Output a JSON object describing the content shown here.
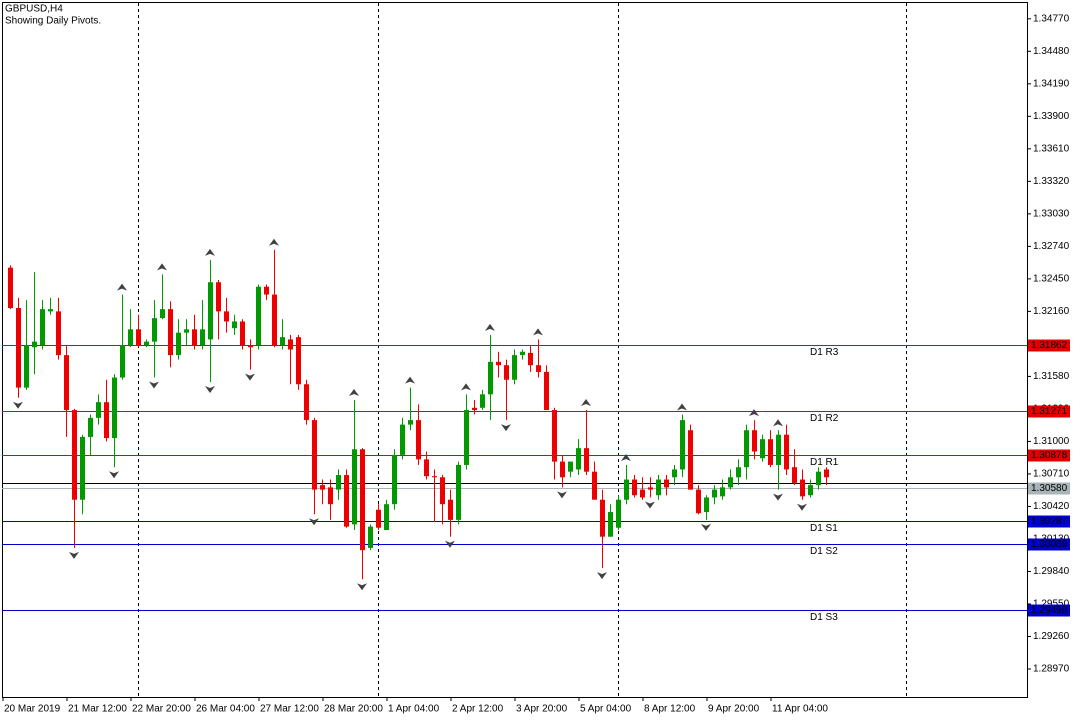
{
  "chart_data": {
    "type": "candlestick",
    "title": "GBPUSD,H4",
    "subtitle": "Showing Daily Pivots.",
    "categories": [
      "20 Mar 2019",
      null,
      null,
      null,
      null,
      null,
      null,
      null,
      "21 Mar 12:00",
      null,
      null,
      null,
      null,
      null,
      null,
      null,
      "22 Mar 20:00",
      null,
      null,
      null,
      null,
      null,
      null,
      null,
      "26 Mar 04:00",
      null,
      null,
      null,
      null,
      null,
      null,
      null,
      "27 Mar 12:00",
      null,
      null,
      null,
      null,
      null,
      null,
      null,
      "28 Mar 20:00",
      null,
      null,
      null,
      null,
      null,
      null,
      null,
      "1 Apr 04:00",
      null,
      null,
      null,
      null,
      null,
      null,
      null,
      "2 Apr 12:00",
      null,
      null,
      null,
      null,
      null,
      null,
      null,
      "3 Apr 20:00",
      null,
      null,
      null,
      null,
      null,
      null,
      null,
      "5 Apr 04:00",
      null,
      null,
      null,
      null,
      null,
      null,
      null,
      "8 Apr 12:00",
      null,
      null,
      null,
      null,
      null,
      null,
      null,
      "9 Apr 20:00",
      null,
      null,
      null,
      null,
      null,
      null,
      null,
      "11 Apr 04:00",
      null,
      null,
      null,
      null,
      null,
      null
    ],
    "open": [
      1.3255,
      1.3219,
      1.3148,
      1.3184,
      1.3186,
      1.3216,
      1.3216,
      1.3177,
      1.3128,
      1.3048,
      1.3104,
      1.3121,
      1.3135,
      1.3103,
      1.3157,
      1.3186,
      1.32,
      1.3186,
      1.3189,
      1.321,
      1.3218,
      1.3177,
      1.3197,
      1.32,
      1.3186,
      1.3191,
      1.3242,
      1.3216,
      1.3201,
      1.3207,
      1.3186,
      1.3186,
      1.3238,
      1.3231,
      1.3186,
      1.3191,
      1.3193,
      1.3151,
      1.3119,
      1.3061,
      1.3059,
      1.3057,
      1.307,
      1.3026,
      1.3093,
      1.3005,
      1.3039,
      1.3021,
      1.3044,
      1.3088,
      1.3115,
      1.3119,
      1.3084,
      1.3069,
      1.3068,
      1.3048,
      1.303,
      1.3079,
      1.313,
      1.313,
      1.3142,
      1.3171,
      1.3168,
      1.3155,
      1.3177,
      1.3179,
      1.3168,
      1.3162,
      1.3128,
      1.3082,
      1.3073,
      1.3075,
      1.3094,
      1.3073,
      1.3048,
      1.3015,
      1.3023,
      1.3048,
      1.3066,
      1.3057,
      1.3059,
      1.3052,
      1.3066,
      1.3068,
      1.3075,
      1.311,
      1.3057,
      1.3037,
      1.305,
      1.3051,
      1.3059,
      1.3068,
      1.3077,
      1.311,
      1.3085,
      1.3102,
      1.3079,
      1.3106,
      1.3077,
      1.3066,
      1.3052,
      1.3061,
      1.3075
    ],
    "high": [
      1.3257,
      1.3228,
      1.3226,
      1.3251,
      1.3226,
      1.3228,
      1.3228,
      1.3186,
      1.3129,
      1.3106,
      1.3124,
      1.3142,
      1.3155,
      1.316,
      1.3231,
      1.3218,
      1.3213,
      1.3191,
      1.3226,
      1.3249,
      1.3225,
      1.3209,
      1.3209,
      1.3213,
      1.3226,
      1.3262,
      1.3244,
      1.3228,
      1.3213,
      1.3209,
      1.3191,
      1.324,
      1.324,
      1.3271,
      1.3209,
      1.3195,
      1.3195,
      1.3155,
      1.3121,
      1.3066,
      1.3066,
      1.3075,
      1.3075,
      1.3137,
      1.3094,
      1.3026,
      1.3044,
      1.3048,
      1.3093,
      1.3121,
      1.3148,
      1.3133,
      1.3091,
      1.3075,
      1.307,
      1.3057,
      1.3082,
      1.3142,
      1.3137,
      1.3146,
      1.3195,
      1.318,
      1.3173,
      1.3182,
      1.3182,
      1.3186,
      1.3191,
      1.3168,
      1.313,
      1.3088,
      1.3082,
      1.3102,
      1.3128,
      1.3082,
      1.3057,
      1.3044,
      1.3052,
      1.3079,
      1.307,
      1.3068,
      1.3068,
      1.307,
      1.307,
      1.3079,
      1.3124,
      1.3115,
      1.3061,
      1.3052,
      1.3061,
      1.3066,
      1.3075,
      1.3084,
      1.3115,
      1.3119,
      1.3106,
      1.311,
      1.311,
      1.3115,
      1.3093,
      1.3075,
      1.3066,
      1.3077,
      1.3077
    ],
    "low": [
      1.3218,
      1.3139,
      1.3146,
      1.316,
      1.3182,
      1.3213,
      1.3173,
      1.3104,
      1.3005,
      1.3035,
      1.3088,
      1.3115,
      1.31,
      1.3077,
      1.3155,
      1.3184,
      1.3184,
      1.3184,
      1.3157,
      1.3209,
      1.3166,
      1.3173,
      1.3186,
      1.3182,
      1.3182,
      1.3153,
      1.3191,
      1.3197,
      1.3195,
      1.3182,
      1.3164,
      1.3182,
      1.3226,
      1.3184,
      1.3182,
      1.3151,
      1.3146,
      1.3115,
      1.3035,
      1.3044,
      1.303,
      1.3048,
      1.3023,
      1.3021,
      1.2977,
      1.3003,
      1.3021,
      1.3021,
      1.3039,
      1.3084,
      1.311,
      1.3079,
      1.3066,
      1.3028,
      1.3026,
      1.3015,
      1.3026,
      1.3075,
      1.3124,
      1.3128,
      1.3119,
      1.3157,
      1.3119,
      1.3151,
      1.3173,
      1.3162,
      1.3157,
      1.3128,
      1.3066,
      1.3059,
      1.3068,
      1.307,
      1.307,
      1.3048,
      1.2987,
      1.3015,
      1.3021,
      1.3044,
      1.305,
      1.3048,
      1.305,
      1.3048,
      1.3052,
      1.3061,
      1.3068,
      1.3057,
      1.3035,
      1.303,
      1.3044,
      1.3048,
      1.3057,
      1.3061,
      1.3066,
      1.3084,
      1.3082,
      1.3077,
      1.3057,
      1.307,
      1.3061,
      1.3048,
      1.305,
      1.3057,
      1.3061
    ],
    "close": [
      1.3219,
      1.3148,
      1.3186,
      1.3189,
      1.3218,
      1.3218,
      1.3177,
      1.3128,
      1.3048,
      1.3104,
      1.3121,
      1.3135,
      1.3103,
      1.3157,
      1.3186,
      1.32,
      1.3186,
      1.3189,
      1.321,
      1.3218,
      1.3177,
      1.3197,
      1.32,
      1.3186,
      1.32,
      1.3242,
      1.3216,
      1.3207,
      1.3207,
      1.3186,
      1.3184,
      1.3238,
      1.3231,
      1.3186,
      1.3193,
      1.3182,
      1.3151,
      1.3119,
      1.3057,
      1.3057,
      1.3044,
      1.307,
      1.3024,
      1.3093,
      1.3003,
      1.3024,
      1.3023,
      1.3044,
      1.3088,
      1.3115,
      1.3119,
      1.3084,
      1.3069,
      1.3068,
      1.3044,
      1.303,
      1.3079,
      1.3128,
      1.3128,
      1.3142,
      1.3171,
      1.3168,
      1.3155,
      1.3177,
      1.318,
      1.3168,
      1.3162,
      1.3128,
      1.3082,
      1.3068,
      1.3082,
      1.3094,
      1.3073,
      1.3048,
      1.3015,
      1.3037,
      1.3048,
      1.3066,
      1.3052,
      1.305,
      1.3057,
      1.3066,
      1.3059,
      1.3075,
      1.3119,
      1.3057,
      1.3036,
      1.305,
      1.3057,
      1.3059,
      1.3068,
      1.3077,
      1.311,
      1.3091,
      1.3102,
      1.3079,
      1.3106,
      1.3075,
      1.3063,
      1.3051,
      1.3061,
      1.3073,
      1.3068
    ],
    "fractal_up": [
      null,
      null,
      null,
      null,
      null,
      null,
      null,
      null,
      null,
      null,
      null,
      null,
      null,
      null,
      1.3231,
      null,
      null,
      null,
      null,
      1.3249,
      null,
      null,
      null,
      null,
      null,
      1.3262,
      null,
      null,
      null,
      null,
      null,
      null,
      null,
      1.3271,
      null,
      null,
      null,
      null,
      null,
      null,
      null,
      null,
      null,
      1.3137,
      null,
      null,
      null,
      null,
      null,
      null,
      1.3148,
      null,
      null,
      null,
      null,
      null,
      null,
      1.3142,
      null,
      null,
      1.3195,
      null,
      null,
      null,
      null,
      null,
      1.3191,
      null,
      null,
      null,
      null,
      null,
      1.3128,
      null,
      null,
      null,
      null,
      1.3079,
      null,
      null,
      null,
      null,
      null,
      null,
      1.3124,
      null,
      null,
      null,
      null,
      null,
      null,
      null,
      null,
      1.3119,
      null,
      null,
      1.311,
      null,
      null,
      null,
      null,
      null,
      null
    ],
    "fractal_down": [
      null,
      1.3139,
      null,
      null,
      null,
      null,
      null,
      null,
      1.3005,
      null,
      null,
      null,
      null,
      1.3077,
      null,
      null,
      null,
      null,
      1.3157,
      null,
      null,
      null,
      null,
      null,
      null,
      1.3153,
      null,
      null,
      null,
      null,
      1.3164,
      null,
      null,
      null,
      null,
      null,
      null,
      null,
      1.3035,
      null,
      null,
      null,
      null,
      null,
      1.2977,
      null,
      null,
      null,
      null,
      null,
      null,
      null,
      null,
      null,
      null,
      1.3015,
      null,
      null,
      null,
      null,
      null,
      null,
      1.3119,
      null,
      null,
      null,
      null,
      null,
      null,
      1.3059,
      null,
      null,
      null,
      null,
      1.2987,
      null,
      null,
      null,
      null,
      null,
      1.305,
      null,
      null,
      null,
      null,
      null,
      null,
      1.303,
      null,
      null,
      null,
      null,
      null,
      null,
      null,
      null,
      1.3057,
      null,
      null,
      1.3048,
      null,
      null,
      null
    ],
    "up_color": "#009900",
    "down_color": "#ee0000",
    "fractal_color": "#404040",
    "ylim": [
      1.2872,
      1.3492
    ],
    "yticks": [
      {
        "value": 1.3477,
        "label": "1.34770"
      },
      {
        "value": 1.3448,
        "label": "1.34480"
      },
      {
        "value": 1.3419,
        "label": "1.34190"
      },
      {
        "value": 1.339,
        "label": "1.33900"
      },
      {
        "value": 1.3361,
        "label": "1.33610"
      },
      {
        "value": 1.3332,
        "label": "1.33320"
      },
      {
        "value": 1.3303,
        "label": "1.33030"
      },
      {
        "value": 1.3274,
        "label": "1.32740"
      },
      {
        "value": 1.3245,
        "label": "1.32450"
      },
      {
        "value": 1.3216,
        "label": "1.32160"
      },
      {
        "value": 1.3187,
        "label": "1.31870"
      },
      {
        "value": 1.3158,
        "label": "1.31580"
      },
      {
        "value": 1.3129,
        "label": "1.31290"
      },
      {
        "value": 1.31,
        "label": "1.31000"
      },
      {
        "value": 1.3071,
        "label": "1.30710"
      },
      {
        "value": 1.3042,
        "label": "1.30420"
      },
      {
        "value": 1.3013,
        "label": "1.30130"
      },
      {
        "value": 1.2984,
        "label": "1.29840"
      },
      {
        "value": 1.2955,
        "label": "1.29550"
      },
      {
        "value": 1.2926,
        "label": "1.29260"
      },
      {
        "value": 1.2897,
        "label": "1.28970"
      }
    ],
    "pivots": [
      {
        "name": "D1 R3",
        "value": 1.31862,
        "color": "#e00000"
      },
      {
        "name": "D1 R2",
        "value": 1.31271,
        "color": "#e00000"
      },
      {
        "name": "D1 R1",
        "value": 1.30878,
        "color": "#e00000"
      },
      {
        "value": 1.30633,
        "color": "#000000"
      },
      {
        "name": "D1 S1",
        "value": 1.30287,
        "color": "#0000cc"
      },
      {
        "name": "D1 S2",
        "value": 1.30089,
        "color": "#0000cc"
      },
      {
        "name": "D1 S3",
        "value": 1.29498,
        "color": "#0000cc"
      }
    ],
    "price_line": {
      "value": 1.3058,
      "label": "1.30580",
      "color": "#a8b4b8"
    }
  }
}
